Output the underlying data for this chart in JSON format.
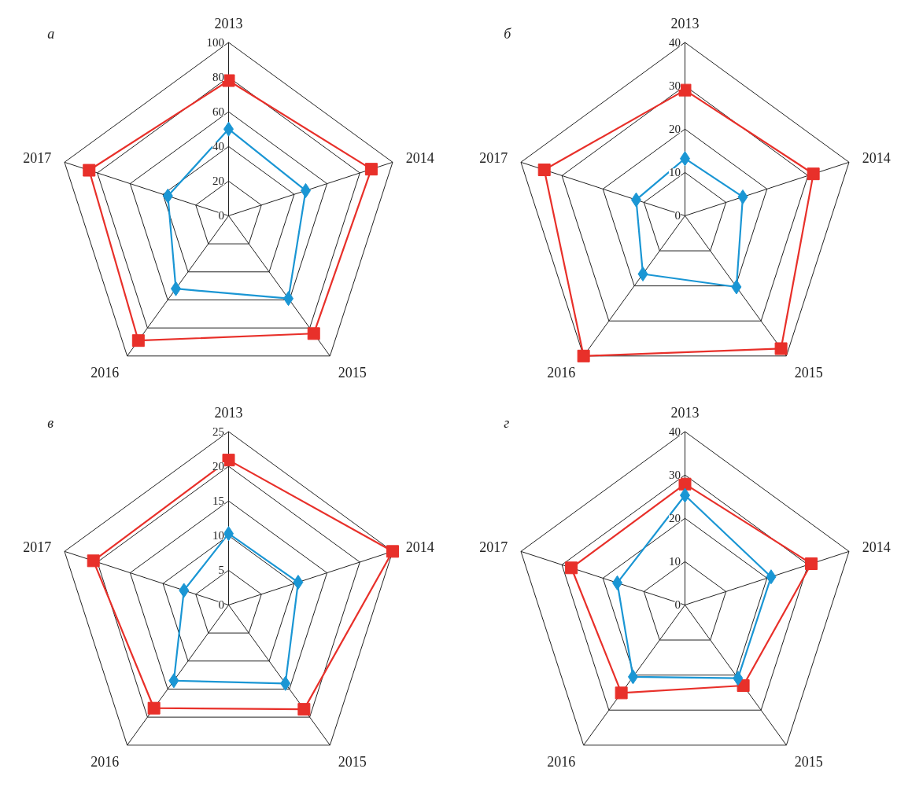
{
  "chart_data": [
    {
      "type": "radar",
      "title": "а",
      "categories": [
        "2013",
        "2014",
        "2015",
        "2016",
        "2017"
      ],
      "ylim": [
        0,
        100
      ],
      "yticks": [
        0,
        20,
        40,
        60,
        80,
        100
      ],
      "series": [
        {
          "color": "#e8302a",
          "marker": "square",
          "values": [
            78,
            87,
            84,
            89,
            85
          ]
        },
        {
          "color": "#1a96d4",
          "marker": "diamond",
          "values": [
            50,
            47,
            59,
            52,
            37
          ]
        }
      ]
    },
    {
      "type": "radar",
      "title": "б",
      "categories": [
        "2013",
        "2014",
        "2015",
        "2016",
        "2017"
      ],
      "ylim": [
        0,
        40
      ],
      "yticks": [
        0,
        10,
        20,
        30,
        40
      ],
      "series": [
        {
          "color": "#e8302a",
          "marker": "square",
          "values": [
            29,
            31.3,
            37.9,
            40,
            34.3
          ]
        },
        {
          "color": "#1a96d4",
          "marker": "diamond",
          "values": [
            13.2,
            14.1,
            20.3,
            16.6,
            11.9
          ]
        }
      ]
    },
    {
      "type": "radar",
      "title": "в",
      "categories": [
        "2013",
        "2014",
        "2015",
        "2016",
        "2017"
      ],
      "ylim": [
        0,
        25
      ],
      "yticks": [
        0,
        5,
        10,
        15,
        20,
        25
      ],
      "series": [
        {
          "color": "#e8302a",
          "marker": "square",
          "values": [
            20.9,
            25,
            18.6,
            18.4,
            20.6
          ]
        },
        {
          "color": "#1a96d4",
          "marker": "diamond",
          "values": [
            10.3,
            10.6,
            14,
            13.5,
            6.8
          ]
        }
      ]
    },
    {
      "type": "radar",
      "title": "г",
      "categories": [
        "2013",
        "2014",
        "2015",
        "2016",
        "2017"
      ],
      "ylim": [
        0,
        40
      ],
      "yticks": [
        0,
        10,
        20,
        30,
        40
      ],
      "series": [
        {
          "color": "#e8302a",
          "marker": "square",
          "values": [
            27.9,
            30.8,
            23,
            25.1,
            27.7
          ]
        },
        {
          "color": "#1a96d4",
          "marker": "diamond",
          "values": [
            25.3,
            21,
            20.9,
            20.5,
            16.5
          ]
        }
      ]
    }
  ]
}
